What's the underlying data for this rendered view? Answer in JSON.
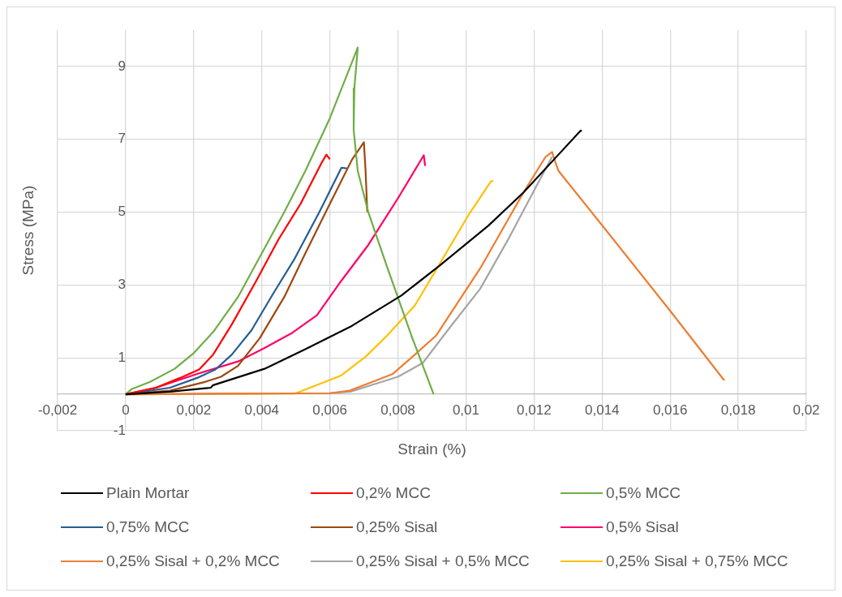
{
  "chart_data": {
    "type": "line",
    "xlabel": "Strain (%)",
    "ylabel": "Stress (MPa)",
    "xlim": [
      -0.002,
      0.02
    ],
    "ylim": [
      -1,
      10
    ],
    "xticks": [
      {
        "value": -0.002,
        "label": "-0,002"
      },
      0,
      {
        "value": 0.002,
        "label": "0,002"
      },
      {
        "value": 0.004,
        "label": "0,004"
      },
      {
        "value": 0.006,
        "label": "0,006"
      },
      {
        "value": 0.008,
        "label": "0,008"
      },
      {
        "value": 0.01,
        "label": "0,01"
      },
      {
        "value": 0.012,
        "label": "0,012"
      },
      {
        "value": 0.014,
        "label": "0,014"
      },
      {
        "value": 0.016,
        "label": "0,016"
      },
      {
        "value": 0.018,
        "label": "0,018"
      },
      {
        "value": 0.02,
        "label": "0,02"
      }
    ],
    "yticks": [
      -1,
      1,
      3,
      5,
      7,
      9
    ],
    "grid": true,
    "legend": "bottom",
    "series": [
      {
        "name": "Plain Mortar",
        "color": "#000000",
        "x": [
          0,
          0.0013,
          0.0025,
          0.00257,
          0.00408,
          0.00528,
          0.00665,
          0.0081,
          0.00922,
          0.01066,
          0.01169,
          0.01258,
          0.01337,
          0.0134
        ],
        "values": [
          0,
          0.07,
          0.18,
          0.25,
          0.7,
          1.24,
          1.88,
          2.71,
          3.53,
          4.63,
          5.54,
          6.44,
          7.24,
          7.22
        ]
      },
      {
        "name": "0,2% MCC",
        "color": "#ff0000",
        "x": [
          0,
          0.00089,
          0.0016,
          0.00216,
          0.00257,
          0.00312,
          0.00384,
          0.00449,
          0.00514,
          0.00576,
          0.0059,
          0.006
        ],
        "values": [
          0,
          0.18,
          0.45,
          0.68,
          1.09,
          1.92,
          3.12,
          4.25,
          5.23,
          6.36,
          6.58,
          6.45
        ]
      },
      {
        "name": "0,5% MCC",
        "color": "#70ad47",
        "x": [
          0,
          0.00017,
          0.00072,
          0.00144,
          0.002,
          0.00258,
          0.0033,
          0.004,
          0.00466,
          0.00528,
          0.006,
          0.00682,
          0.00672,
          0.0067,
          0.00682,
          0.00713,
          0.00768,
          0.0084,
          0.00905
        ],
        "values": [
          0,
          0.14,
          0.34,
          0.7,
          1.13,
          1.72,
          2.67,
          3.87,
          5.0,
          6.13,
          7.58,
          9.52,
          8.4,
          7.26,
          6.13,
          5.0,
          3.5,
          1.6,
          0
        ]
      },
      {
        "name": "0,75% MCC",
        "color": "#255e91",
        "x": [
          0,
          0.0013,
          0.0021,
          0.00264,
          0.00312,
          0.0037,
          0.00432,
          0.00497,
          0.00569,
          0.00634,
          0.0065
        ],
        "values": [
          0,
          0.18,
          0.45,
          0.68,
          1.09,
          1.76,
          2.74,
          3.73,
          5.0,
          6.22,
          6.2
        ]
      },
      {
        "name": "0,25% Sisal",
        "color": "#9e480e",
        "x": [
          0,
          0.0013,
          0.00233,
          0.0028,
          0.0033,
          0.00394,
          0.00466,
          0.00528,
          0.006,
          0.00665,
          0.007,
          0.00705,
          0.0071
        ],
        "values": [
          0,
          0.1,
          0.34,
          0.48,
          0.78,
          1.54,
          2.67,
          3.87,
          5.23,
          6.44,
          6.92,
          6.13,
          5.0
        ]
      },
      {
        "name": "0,5% Sisal",
        "color": "#ff0066",
        "x": [
          0,
          0.00089,
          0.0021,
          0.0033,
          0.00408,
          0.0049,
          0.00562,
          0.00634,
          0.00713,
          0.008,
          0.00876,
          0.0088
        ],
        "values": [
          0,
          0.18,
          0.56,
          0.9,
          1.27,
          1.69,
          2.17,
          3.12,
          4.1,
          5.38,
          6.56,
          6.27
        ]
      },
      {
        "name": "0,25% Sisal + 0,2% MCC",
        "color": "#ed7d31",
        "x": [
          0,
          0.003,
          0.006,
          0.00658,
          0.0073,
          0.00785,
          0.0085,
          0.00912,
          0.01042,
          0.01169,
          0.01234,
          0.01253,
          0.0126,
          0.01272,
          0.014,
          0.016,
          0.01759
        ],
        "values": [
          0,
          0.02,
          0.03,
          0.1,
          0.36,
          0.56,
          1.09,
          1.61,
          3.46,
          5.54,
          6.52,
          6.65,
          6.44,
          6.13,
          4.64,
          2.29,
          0.38
        ]
      },
      {
        "name": "0,25% Sisal + 0,5% MCC",
        "color": "#a5a5a5",
        "x": [
          0,
          0.006,
          0.0066,
          0.008,
          0.00873,
          0.00953,
          0.01042,
          0.01128,
          0.0121,
          0.01253
        ],
        "values": [
          0,
          0.03,
          0.07,
          0.48,
          0.86,
          1.84,
          2.9,
          4.32,
          5.77,
          6.52
        ]
      },
      {
        "name": "0,25% Sisal + 0,75% MCC",
        "color": "#ffc000",
        "x": [
          0,
          0.003,
          0.00497,
          0.00586,
          0.00634,
          0.00706,
          0.00768,
          0.0085,
          0.00922,
          0.01008,
          0.01073,
          0.0108
        ],
        "values": [
          0,
          0.01,
          0.02,
          0.34,
          0.52,
          1.04,
          1.61,
          2.44,
          3.57,
          4.93,
          5.84,
          5.86
        ]
      }
    ]
  }
}
